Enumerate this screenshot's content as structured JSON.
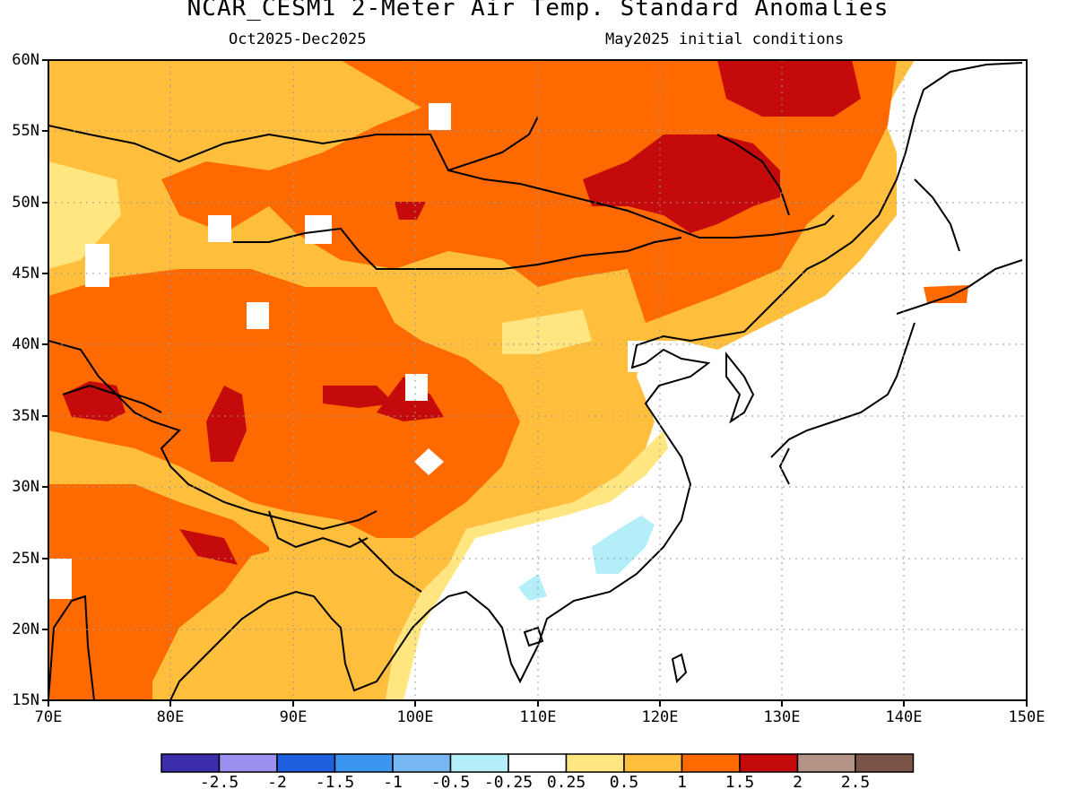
{
  "title": "NCAR_CESM1 2-Meter Air Temp. Standard Anomalies",
  "subtitle_left": "Oct2025-Dec2025",
  "subtitle_right": "May2025 initial conditions",
  "map": {
    "lon_range": [
      70,
      150
    ],
    "lat_range": [
      15,
      60
    ],
    "lon_ticks": [
      "70E",
      "80E",
      "90E",
      "100E",
      "110E",
      "120E",
      "130E",
      "140E",
      "150E"
    ],
    "lat_ticks": [
      "15N",
      "20N",
      "25N",
      "30N",
      "35N",
      "40N",
      "45N",
      "50N",
      "55N",
      "60N"
    ],
    "gridlines": "dotted"
  },
  "legend": {
    "colors": [
      "#3b2dab",
      "#9b8ff0",
      "#1e5fe0",
      "#3c96f0",
      "#78b8f2",
      "#b4eef8",
      "#ffffff",
      "#ffe680",
      "#ffbe3c",
      "#ff6a00",
      "#c40a0a",
      "#b49484",
      "#7a5246"
    ],
    "labels": [
      "-2.5",
      "-2",
      "-1.5",
      "-1",
      "-0.5",
      "-0.25",
      "0.25",
      "0.5",
      "1",
      "1.5",
      "2",
      "2.5"
    ]
  }
}
